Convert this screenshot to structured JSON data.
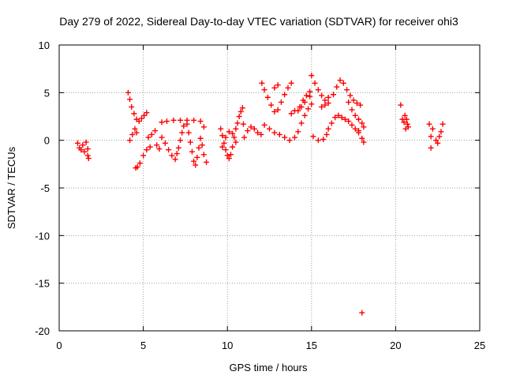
{
  "chart_data": {
    "type": "scatter",
    "title": "Day 279 of 2022, Sidereal Day-to-day VTEC variation (SDTVAR) for receiver ohi3",
    "xlabel": "GPS time / hours",
    "ylabel": "SDTVAR / TECUs",
    "xlim": [
      0,
      25
    ],
    "ylim": [
      -20,
      10
    ],
    "xticks": [
      0,
      5,
      10,
      15,
      20,
      25
    ],
    "yticks": [
      -20,
      -15,
      -10,
      -5,
      0,
      5,
      10
    ],
    "grid": true,
    "marker": "+",
    "color": "#ff0000",
    "series": [
      {
        "name": "SDTVAR",
        "points": [
          [
            1.1,
            -0.3
          ],
          [
            1.2,
            -0.8
          ],
          [
            1.3,
            -1.0
          ],
          [
            1.4,
            -0.5
          ],
          [
            1.5,
            -1.2
          ],
          [
            1.6,
            -0.2
          ],
          [
            1.7,
            -1.6
          ],
          [
            1.75,
            -1.9
          ],
          [
            1.7,
            -0.9
          ],
          [
            4.1,
            5.0
          ],
          [
            4.2,
            4.3
          ],
          [
            4.3,
            3.5
          ],
          [
            4.45,
            2.8
          ],
          [
            4.6,
            2.2
          ],
          [
            4.75,
            2.0
          ],
          [
            4.9,
            2.3
          ],
          [
            5.05,
            2.6
          ],
          [
            5.2,
            2.9
          ],
          [
            4.2,
            0.0
          ],
          [
            4.35,
            0.6
          ],
          [
            4.5,
            1.2
          ],
          [
            4.6,
            0.8
          ],
          [
            4.55,
            -2.9
          ],
          [
            4.65,
            -2.8
          ],
          [
            4.8,
            -2.4
          ],
          [
            5.0,
            -1.6
          ],
          [
            5.2,
            -1.0
          ],
          [
            5.4,
            -0.7
          ],
          [
            5.3,
            0.3
          ],
          [
            5.5,
            0.6
          ],
          [
            5.7,
            1.0
          ],
          [
            5.8,
            -0.5
          ],
          [
            5.95,
            -0.9
          ],
          [
            6.1,
            1.9
          ],
          [
            6.4,
            2.0
          ],
          [
            6.8,
            2.1
          ],
          [
            7.2,
            2.1
          ],
          [
            7.6,
            2.1
          ],
          [
            8.0,
            2.1
          ],
          [
            8.4,
            2.0
          ],
          [
            8.6,
            1.4
          ],
          [
            6.1,
            0.3
          ],
          [
            6.3,
            -0.3
          ],
          [
            6.5,
            -1.0
          ],
          [
            6.7,
            -1.6
          ],
          [
            6.9,
            -2.0
          ],
          [
            7.0,
            -1.4
          ],
          [
            7.1,
            -0.8
          ],
          [
            7.2,
            0.0
          ],
          [
            7.3,
            0.8
          ],
          [
            7.4,
            1.5
          ],
          [
            7.6,
            1.7
          ],
          [
            7.7,
            0.8
          ],
          [
            7.8,
            -0.2
          ],
          [
            7.9,
            -1.2
          ],
          [
            8.0,
            -2.2
          ],
          [
            8.1,
            -2.6
          ],
          [
            8.2,
            -1.8
          ],
          [
            8.3,
            -0.8
          ],
          [
            8.4,
            0.2
          ],
          [
            8.5,
            -0.5
          ],
          [
            8.6,
            -1.5
          ],
          [
            8.75,
            -2.3
          ],
          [
            9.6,
            1.2
          ],
          [
            9.7,
            0.5
          ],
          [
            9.8,
            -0.3
          ],
          [
            9.9,
            -1.0
          ],
          [
            10.0,
            -1.6
          ],
          [
            10.1,
            -1.9
          ],
          [
            10.2,
            -1.5
          ],
          [
            10.3,
            -0.7
          ],
          [
            10.4,
            0.3
          ],
          [
            10.5,
            1.2
          ],
          [
            10.6,
            1.8
          ],
          [
            9.7,
            -0.7
          ],
          [
            9.9,
            0.3
          ],
          [
            10.1,
            0.9
          ],
          [
            10.3,
            0.7
          ],
          [
            10.5,
            -0.2
          ],
          [
            10.7,
            2.5
          ],
          [
            10.8,
            3.0
          ],
          [
            10.9,
            3.4
          ],
          [
            10.95,
            1.7
          ],
          [
            11.0,
            0.3
          ],
          [
            11.2,
            1.0
          ],
          [
            11.4,
            1.4
          ],
          [
            11.6,
            1.2
          ],
          [
            11.8,
            0.8
          ],
          [
            12.0,
            0.6
          ],
          [
            12.05,
            6.0
          ],
          [
            12.2,
            5.3
          ],
          [
            12.4,
            4.5
          ],
          [
            12.6,
            3.7
          ],
          [
            12.8,
            3.0
          ],
          [
            13.0,
            3.2
          ],
          [
            13.2,
            4.0
          ],
          [
            13.4,
            4.8
          ],
          [
            13.6,
            5.5
          ],
          [
            13.8,
            6.0
          ],
          [
            13.0,
            5.8
          ],
          [
            12.8,
            5.5
          ],
          [
            12.2,
            1.6
          ],
          [
            12.5,
            1.2
          ],
          [
            12.8,
            0.8
          ],
          [
            13.1,
            0.6
          ],
          [
            13.4,
            0.3
          ],
          [
            13.7,
            0.0
          ],
          [
            14.0,
            0.3
          ],
          [
            14.2,
            0.9
          ],
          [
            14.4,
            1.8
          ],
          [
            14.6,
            2.6
          ],
          [
            14.8,
            3.3
          ],
          [
            15.0,
            3.8
          ],
          [
            13.8,
            2.8
          ],
          [
            14.0,
            3.1
          ],
          [
            14.3,
            3.5
          ],
          [
            14.5,
            4.2
          ],
          [
            14.7,
            4.7
          ],
          [
            14.9,
            5.1
          ],
          [
            14.2,
            3.1
          ],
          [
            14.4,
            3.5
          ],
          [
            14.6,
            4.0
          ],
          [
            14.9,
            4.6
          ],
          [
            15.0,
            6.8
          ],
          [
            15.2,
            6.0
          ],
          [
            15.4,
            5.3
          ],
          [
            15.6,
            4.7
          ],
          [
            15.8,
            4.2
          ],
          [
            16.0,
            4.5
          ],
          [
            15.6,
            3.5
          ],
          [
            15.8,
            3.7
          ],
          [
            16.0,
            3.9
          ],
          [
            16.3,
            4.8
          ],
          [
            16.5,
            5.6
          ],
          [
            16.7,
            6.3
          ],
          [
            16.9,
            6.0
          ],
          [
            17.1,
            5.3
          ],
          [
            17.3,
            4.7
          ],
          [
            17.5,
            4.2
          ],
          [
            17.7,
            3.9
          ],
          [
            17.9,
            3.7
          ],
          [
            16.0,
            1.2
          ],
          [
            16.2,
            1.8
          ],
          [
            16.4,
            2.4
          ],
          [
            16.6,
            2.6
          ],
          [
            16.8,
            2.4
          ],
          [
            17.0,
            2.2
          ],
          [
            17.2,
            2.0
          ],
          [
            17.4,
            1.6
          ],
          [
            17.6,
            1.2
          ],
          [
            17.8,
            0.8
          ],
          [
            15.1,
            0.4
          ],
          [
            15.4,
            0.0
          ],
          [
            15.7,
            0.1
          ],
          [
            15.9,
            0.6
          ],
          [
            17.2,
            4.0
          ],
          [
            17.4,
            3.2
          ],
          [
            17.6,
            2.6
          ],
          [
            17.8,
            2.2
          ],
          [
            18.0,
            1.8
          ],
          [
            18.1,
            1.4
          ],
          [
            17.8,
            1.0
          ],
          [
            18.0,
            0.2
          ],
          [
            18.1,
            -0.2
          ],
          [
            18.0,
            -18.1
          ],
          [
            20.3,
            3.7
          ],
          [
            20.4,
            2.2
          ],
          [
            20.55,
            2.6
          ],
          [
            20.65,
            2.2
          ],
          [
            20.7,
            1.7
          ],
          [
            20.6,
            1.2
          ],
          [
            20.5,
            1.9
          ],
          [
            20.75,
            1.4
          ],
          [
            22.0,
            1.7
          ],
          [
            22.2,
            1.2
          ],
          [
            22.1,
            0.4
          ],
          [
            22.1,
            -0.8
          ],
          [
            22.4,
            0.0
          ],
          [
            22.6,
            0.4
          ],
          [
            22.7,
            0.9
          ],
          [
            22.8,
            1.7
          ],
          [
            22.5,
            -0.3
          ]
        ]
      }
    ]
  }
}
